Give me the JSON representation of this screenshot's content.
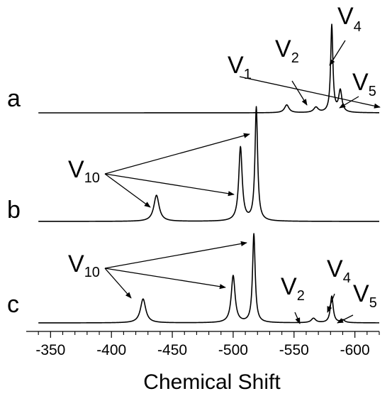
{
  "chart_data": {
    "type": "line",
    "xlabel": "Chemical Shift",
    "xlim": [
      -330,
      -620
    ],
    "x_ticks": [
      -350,
      -400,
      -450,
      -500,
      -550,
      -600
    ],
    "x_tick_labels": [
      "-350",
      "-400",
      "-450",
      "-500",
      "-550",
      "-600"
    ],
    "series": [
      {
        "name": "a",
        "x_start": -340,
        "x_end": -620,
        "peaks": [
          {
            "label": "V1",
            "x": -544,
            "height": 0.09,
            "width": 2.2
          },
          {
            "label": "V2",
            "x": -568,
            "height": 0.06,
            "width": 2.2
          },
          {
            "label": "V4",
            "x": -581,
            "height": 1.0,
            "width": 1.1
          },
          {
            "label": "V5",
            "x": -588,
            "height": 0.25,
            "width": 1.6
          }
        ]
      },
      {
        "name": "b",
        "x_start": -340,
        "x_end": -620,
        "peaks": [
          {
            "label": "V10",
            "x": -437,
            "height": 0.23,
            "width": 2.6
          },
          {
            "label": "V10",
            "x": -506,
            "height": 0.65,
            "width": 1.7
          },
          {
            "label": "V10",
            "x": -519,
            "height": 1.0,
            "width": 1.3
          }
        ]
      },
      {
        "name": "c",
        "x_start": -340,
        "x_end": -620,
        "peaks": [
          {
            "label": "V10",
            "x": -426,
            "height": 0.27,
            "width": 2.6
          },
          {
            "label": "V10",
            "x": -500,
            "height": 0.53,
            "width": 1.9
          },
          {
            "label": "V10",
            "x": -517,
            "height": 1.0,
            "width": 1.3
          },
          {
            "label": "V2",
            "x": -566,
            "height": 0.05,
            "width": 2.2
          },
          {
            "label": "V4",
            "x": -581,
            "height": 0.3,
            "width": 1.4
          },
          {
            "label": "V5",
            "x": -590,
            "height": 0.03,
            "width": 2.0
          }
        ]
      }
    ],
    "annotations": [
      {
        "id": "a_v1",
        "base": "V",
        "sub": "1"
      },
      {
        "id": "a_v2",
        "base": "V",
        "sub": "2"
      },
      {
        "id": "a_v4",
        "base": "V",
        "sub": "4"
      },
      {
        "id": "a_v5",
        "base": "V",
        "sub": "5"
      },
      {
        "id": "b_v10",
        "base": "V",
        "sub": "10"
      },
      {
        "id": "c_v10",
        "base": "V",
        "sub": "10"
      },
      {
        "id": "c_v2",
        "base": "V",
        "sub": "2"
      },
      {
        "id": "c_v4",
        "base": "V",
        "sub": "4"
      },
      {
        "id": "c_v5",
        "base": "V",
        "sub": "5"
      }
    ]
  }
}
